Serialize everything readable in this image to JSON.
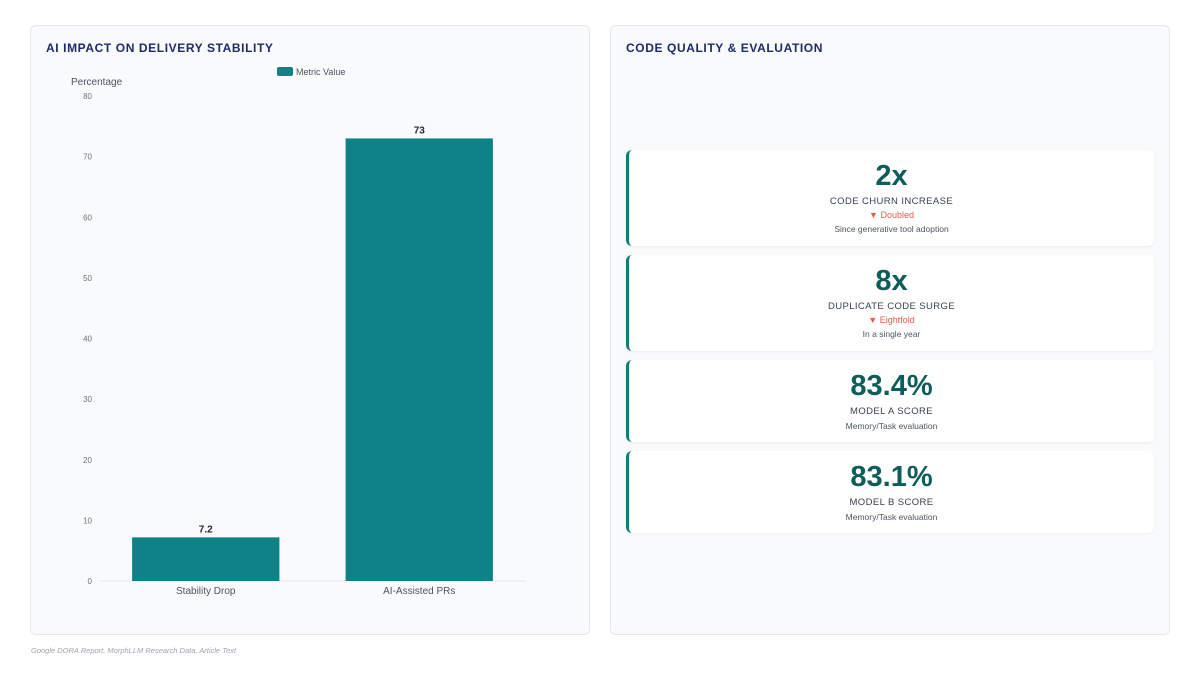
{
  "left": {
    "title": "AI IMPACT ON DELIVERY STABILITY"
  },
  "right": {
    "title": "CODE QUALITY & EVALUATION",
    "cards": [
      {
        "value": "2x",
        "label": "CODE CHURN INCREASE",
        "trend": "▼ Doubled",
        "note": "Since generative tool adoption"
      },
      {
        "value": "8x",
        "label": "DUPLICATE CODE SURGE",
        "trend": "▼ Eightfold",
        "note": "In a single year"
      },
      {
        "value": "83.4%",
        "label": "MODEL A SCORE",
        "trend": "",
        "note": "Memory/Task evaluation"
      },
      {
        "value": "83.1%",
        "label": "MODEL B SCORE",
        "trend": "",
        "note": "Memory/Task evaluation"
      }
    ]
  },
  "footer": {
    "source": "Google DORA Report, MorphLLM Research Data, Article Text"
  },
  "colors": {
    "bar": "#0f8287",
    "accent": "#0d5d5b",
    "trend": "#e0604a",
    "title": "#1e2a6b"
  },
  "chart_data": {
    "type": "bar",
    "categories": [
      "Stability Drop",
      "AI-Assisted PRs"
    ],
    "series": [
      {
        "name": "Metric Value",
        "values": [
          7.2,
          73
        ]
      }
    ],
    "data_labels": [
      "7.2",
      "73"
    ],
    "title": "AI IMPACT ON DELIVERY STABILITY",
    "xlabel": "",
    "ylabel": "Percentage",
    "ylim": [
      0,
      80
    ],
    "yticks": [
      0,
      10,
      20,
      30,
      40,
      50,
      60,
      70,
      80
    ],
    "grid": false,
    "legend": "top"
  }
}
